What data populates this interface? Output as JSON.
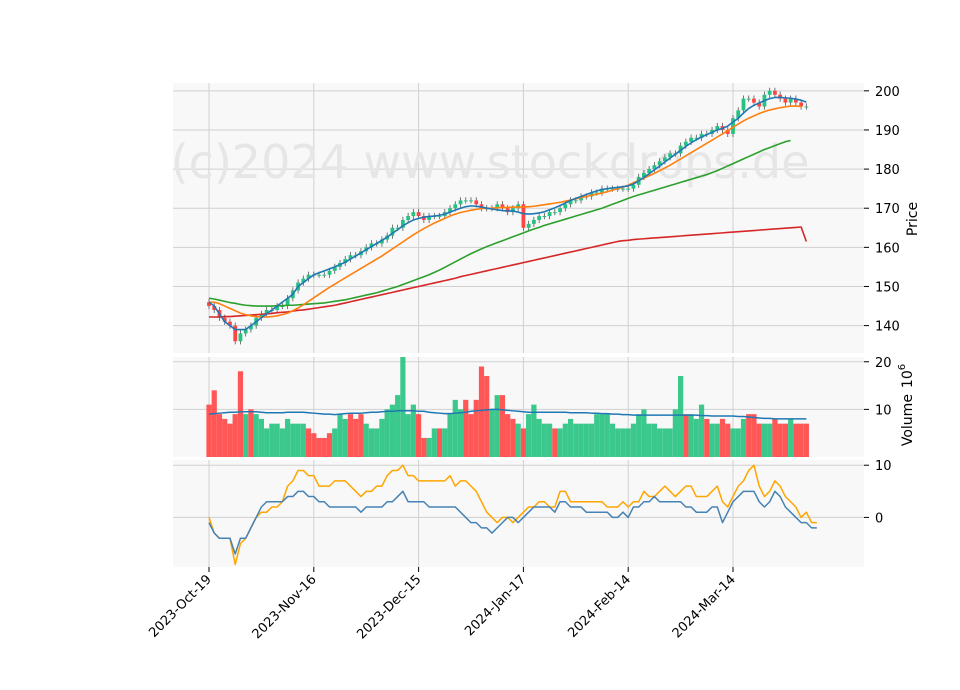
{
  "watermark": "(c)2024 www.stockdrops.de",
  "chart_data": {
    "type": "candlestick",
    "x_tick_labels": [
      "2023-Oct-19",
      "2023-Nov-16",
      "2023-Dec-15",
      "2024-Jan-17",
      "2024-Feb-14",
      "2024-Mar-14"
    ],
    "x_tick_index": [
      0,
      20,
      40,
      60,
      80,
      100
    ],
    "colors": {
      "up": "#26c281",
      "down": "#ff4444",
      "ma_fast": "#1f77b4",
      "ma_mid": "#ff7f0e",
      "ma_slow": "#2ca02c",
      "ma_long": "#d62728",
      "vol_ma": "#1f77b4",
      "osc_a": "#ffa500",
      "osc_b": "#4682b4",
      "grid": "#d0d0d0",
      "panel_bg": "#f8f8f8"
    },
    "price_panel": {
      "ylabel": "Price",
      "ylim": [
        133,
        202
      ],
      "yticks": [
        140,
        150,
        160,
        170,
        180,
        190,
        200
      ],
      "close": [
        145,
        144,
        142,
        141,
        140,
        136,
        138,
        139,
        140,
        142,
        143,
        144,
        144,
        145,
        145,
        147,
        149,
        151,
        152,
        153,
        153,
        153,
        153,
        154,
        155,
        156,
        157,
        158,
        158,
        159,
        160,
        161,
        161,
        162,
        163,
        165,
        165,
        167,
        168,
        169,
        168,
        167,
        168,
        168,
        168,
        169,
        170,
        171,
        172,
        172,
        172,
        171,
        170,
        170,
        170,
        171,
        170,
        169,
        170,
        171,
        165,
        166,
        167,
        168,
        168,
        169,
        169,
        170,
        171,
        172,
        172,
        173,
        173,
        174,
        174,
        175,
        175,
        175,
        175,
        175,
        175,
        176,
        178,
        179,
        180,
        181,
        182,
        183,
        184,
        184,
        186,
        187,
        188,
        188,
        189,
        189,
        190,
        191,
        190,
        189,
        193,
        195,
        198,
        198,
        197,
        196,
        199,
        200,
        199,
        198,
        197,
        198,
        197,
        196,
        196
      ],
      "ma_fast": [
        146,
        145,
        143,
        141,
        140,
        139,
        139,
        139,
        140,
        141,
        142,
        143,
        144,
        145,
        146,
        147,
        148,
        150,
        151,
        152,
        153,
        153.5,
        154,
        154.5,
        155,
        155.6,
        156.2,
        157,
        157.8,
        158.6,
        159.4,
        160.2,
        161,
        161.8,
        162.6,
        163.6,
        164.5,
        165.5,
        166.3,
        167,
        167.4,
        167.7,
        167.9,
        168,
        168.2,
        168.5,
        169,
        169.5,
        170,
        170.4,
        170.6,
        170.5,
        170.3,
        170,
        169.8,
        169.6,
        169.4,
        169.3,
        169.3,
        169,
        168.6,
        168.5,
        168.6,
        168.8,
        169.1,
        169.6,
        170.1,
        170.7,
        171.3,
        172,
        172.5,
        173,
        173.5,
        174,
        174.4,
        174.8,
        175,
        175.2,
        175.3,
        175.5,
        175.7,
        176.2,
        177,
        177.9,
        178.8,
        179.8,
        180.8,
        181.8,
        182.8,
        183.8,
        184.8,
        185.8,
        186.7,
        187.5,
        188.2,
        188.8,
        189.4,
        190,
        190.4,
        191,
        192,
        193,
        194.3,
        195.5,
        196.3,
        196.9,
        197.5,
        198,
        198.3,
        198.3,
        198.2,
        198.1,
        197.9,
        197.6,
        197.1
      ],
      "ma_mid": [
        146,
        146,
        145.6,
        145,
        144.4,
        143.8,
        143.2,
        142.8,
        142.5,
        142.3,
        142.2,
        142.2,
        142.3,
        142.5,
        142.8,
        143.2,
        143.8,
        144.5,
        145.3,
        146.2,
        147.1,
        148,
        148.9,
        149.8,
        150.6,
        151.4,
        152.2,
        153,
        153.8,
        154.6,
        155.4,
        156.2,
        157,
        157.8,
        158.7,
        159.6,
        160.5,
        161.4,
        162.3,
        163.2,
        164,
        164.8,
        165.5,
        166.2,
        166.8,
        167.4,
        168,
        168.5,
        168.9,
        169.2,
        169.5,
        169.7,
        169.9,
        170,
        170,
        170.1,
        170.2,
        170.2,
        170.3,
        170.3,
        170.3,
        170.4,
        170.5,
        170.7,
        170.9,
        171.1,
        171.3,
        171.5,
        171.8,
        172.1,
        172.4,
        172.7,
        173,
        173.3,
        173.6,
        173.9,
        174.2,
        174.6,
        175,
        175.4,
        175.9,
        176.5,
        177.1,
        177.7,
        178.3,
        178.9,
        179.6,
        180.3,
        181,
        181.8,
        182.6,
        183.4,
        184.2,
        185,
        185.8,
        186.6,
        187.4,
        188.2,
        189,
        189.8,
        190.7,
        191.5,
        192.3,
        193,
        193.6,
        194.2,
        194.7,
        195.1,
        195.4,
        195.7,
        195.9,
        196.1,
        196.1,
        196
      ],
      "ma_slow": [
        147,
        146.8,
        146.5,
        146.2,
        145.9,
        145.7,
        145.4,
        145.2,
        145.1,
        145,
        145,
        145,
        145,
        145.1,
        145.1,
        145.2,
        145.2,
        145.3,
        145.4,
        145.5,
        145.6,
        145.7,
        145.8,
        146,
        146.2,
        146.4,
        146.6,
        146.9,
        147.2,
        147.5,
        147.8,
        148.1,
        148.4,
        148.8,
        149.2,
        149.6,
        150,
        150.5,
        151,
        151.5,
        152,
        152.5,
        153,
        153.6,
        154.2,
        154.9,
        155.6,
        156.3,
        157,
        157.7,
        158.4,
        159,
        159.6,
        160.2,
        160.7,
        161.2,
        161.7,
        162.2,
        162.7,
        163.2,
        163.7,
        164.2,
        164.7,
        165.1,
        165.6,
        166,
        166.4,
        166.8,
        167.2,
        167.6,
        168,
        168.4,
        168.8,
        169.2,
        169.6,
        170,
        170.5,
        171,
        171.5,
        172,
        172.5,
        173,
        173.4,
        173.8,
        174.2,
        174.6,
        175,
        175.4,
        175.8,
        176.2,
        176.6,
        177,
        177.4,
        177.8,
        178.2,
        178.6,
        179.1,
        179.6,
        180.2,
        180.8,
        181.4,
        182,
        182.6,
        183.2,
        183.8,
        184.4,
        185,
        185.5,
        186,
        186.5,
        187,
        187.3
      ],
      "ma_long": [
        142.2,
        142.2,
        142.2,
        142.3,
        142.3,
        142.4,
        142.5,
        142.6,
        142.7,
        142.8,
        142.9,
        143,
        143.1,
        143.3,
        143.4,
        143.5,
        143.7,
        143.9,
        144,
        144.2,
        144.4,
        144.6,
        144.8,
        145,
        145.2,
        145.5,
        145.8,
        146.1,
        146.4,
        146.7,
        147,
        147.3,
        147.6,
        147.9,
        148.2,
        148.5,
        148.8,
        149.1,
        149.4,
        149.7,
        150,
        150.3,
        150.6,
        150.9,
        151.2,
        151.5,
        151.8,
        152.1,
        152.5,
        152.8,
        153.1,
        153.4,
        153.7,
        154,
        154.3,
        154.6,
        154.9,
        155.2,
        155.5,
        155.8,
        156.1,
        156.4,
        156.7,
        157,
        157.3,
        157.6,
        157.9,
        158.2,
        158.5,
        158.8,
        159.1,
        159.4,
        159.7,
        160,
        160.3,
        160.6,
        160.9,
        161.2,
        161.5,
        161.7,
        161.8,
        162,
        162.1,
        162.2,
        162.3,
        162.4,
        162.5,
        162.6,
        162.7,
        162.8,
        162.9,
        163,
        163.1,
        163.2,
        163.3,
        163.4,
        163.5,
        163.6,
        163.7,
        163.8,
        163.9,
        164,
        164.1,
        164.2,
        164.3,
        164.4,
        164.5,
        164.6,
        164.7,
        164.8,
        164.9,
        165,
        165.1,
        165.2,
        161.5
      ]
    },
    "volume_panel": {
      "ylabel": "Volume",
      "ylabel_unit": "10",
      "ylabel_exp": "6",
      "ylim": [
        0,
        21
      ],
      "yticks": [
        10,
        20
      ],
      "volume": [
        11,
        14,
        9,
        8,
        7,
        9,
        18,
        9,
        10,
        9,
        8,
        6,
        7,
        7,
        6,
        8,
        7,
        7,
        7,
        6,
        5,
        4,
        4,
        5,
        6,
        9,
        8,
        9,
        8,
        9,
        7,
        6,
        6,
        8,
        10,
        11,
        13,
        21,
        9,
        11,
        9,
        4,
        4,
        6,
        6,
        6,
        9,
        12,
        10,
        12,
        9,
        12,
        19,
        17,
        10,
        13,
        13,
        9,
        8,
        7,
        6,
        9,
        11,
        8,
        7,
        7,
        6,
        6,
        7,
        8,
        7,
        7,
        7,
        7,
        9,
        9,
        9,
        7,
        6,
        6,
        6,
        7,
        9,
        10,
        7,
        7,
        6,
        6,
        6,
        10,
        17,
        9,
        9,
        8,
        11,
        8,
        7,
        7,
        8,
        7,
        6,
        6,
        8,
        9,
        9,
        7,
        7,
        7,
        8,
        7,
        7,
        8,
        7,
        7,
        7
      ],
      "vol_ma": [
        9,
        9.1,
        9.2,
        9.3,
        9.4,
        9.4,
        9.5,
        9.5,
        9.5,
        9.5,
        9.4,
        9.3,
        9.3,
        9.3,
        9.3,
        9.4,
        9.4,
        9.4,
        9.4,
        9.3,
        9.2,
        9.1,
        9,
        9,
        8.9,
        9,
        9.1,
        9.2,
        9.2,
        9.2,
        9.3,
        9.4,
        9.4,
        9.5,
        9.6,
        9.6,
        9.7,
        9.7,
        9.7,
        9.7,
        9.6,
        9.6,
        9.4,
        9.3,
        9.2,
        9.1,
        9.1,
        9.2,
        9.3,
        9.4,
        9.6,
        9.7,
        9.8,
        9.9,
        10,
        10,
        9.9,
        9.8,
        9.7,
        9.6,
        9.5,
        9.4,
        9.4,
        9.4,
        9.4,
        9.4,
        9.4,
        9.4,
        9.4,
        9.3,
        9.3,
        9.3,
        9.3,
        9.2,
        9.2,
        9.1,
        9.1,
        9,
        9,
        8.9,
        8.9,
        8.8,
        8.8,
        8.8,
        8.8,
        8.8,
        8.8,
        8.8,
        8.8,
        8.8,
        8.8,
        8.8,
        8.8,
        8.8,
        8.7,
        8.7,
        8.6,
        8.6,
        8.6,
        8.6,
        8.6,
        8.5,
        8.5,
        8.4,
        8.3,
        8.2,
        8.1,
        8.1,
        8,
        8,
        8,
        8,
        8,
        8,
        8
      ],
      "up": [
        false,
        false,
        false,
        false,
        false,
        false,
        false,
        true,
        false,
        true,
        true,
        true,
        true,
        true,
        true,
        true,
        true,
        true,
        true,
        false,
        false,
        false,
        false,
        false,
        true,
        true,
        true,
        false,
        false,
        false,
        true,
        true,
        true,
        true,
        true,
        true,
        true,
        true,
        true,
        true,
        false,
        false,
        true,
        true,
        false,
        true,
        true,
        true,
        true,
        false,
        false,
        false,
        false,
        false,
        true,
        true,
        false,
        false,
        false,
        true,
        false,
        true,
        true,
        true,
        true,
        true,
        false,
        true,
        true,
        true,
        true,
        true,
        true,
        true,
        true,
        true,
        true,
        true,
        true,
        true,
        true,
        true,
        true,
        true,
        true,
        true,
        true,
        true,
        true,
        true,
        true,
        false,
        true,
        true,
        true,
        false,
        true,
        true,
        false,
        false,
        true,
        true,
        true,
        false,
        false,
        false,
        true,
        true,
        false,
        false,
        false,
        true,
        false,
        false,
        false
      ]
    },
    "osc_panel": {
      "ylim": [
        -9.5,
        11
      ],
      "yticks": [
        0,
        10
      ],
      "line_a": [
        0,
        -3,
        -4,
        -4,
        -4,
        -9,
        -5,
        -4,
        -2,
        0,
        1,
        1,
        2,
        2,
        3,
        6,
        7,
        9,
        9,
        8,
        8,
        6,
        6,
        6,
        7,
        7,
        7,
        6,
        5,
        4,
        5,
        5,
        6,
        6,
        8,
        9,
        9,
        10,
        8,
        8,
        7,
        7,
        7,
        7,
        7,
        7,
        8,
        6,
        7,
        7,
        6,
        5,
        3,
        1,
        0,
        -1,
        0,
        0,
        -1,
        0,
        1,
        2,
        2,
        3,
        3,
        2,
        2,
        5,
        5,
        3,
        3,
        3,
        3,
        3,
        3,
        3,
        2,
        2,
        2,
        3,
        2,
        3,
        3,
        5,
        4,
        4,
        5,
        6,
        5,
        4,
        5,
        6,
        6,
        4,
        4,
        4,
        5,
        6,
        3,
        2,
        4,
        6,
        7,
        9,
        10,
        6,
        4,
        5,
        7,
        6,
        4,
        3,
        2,
        0,
        1,
        -1,
        -1
      ],
      "line_b": [
        -1,
        -3,
        -4,
        -4,
        -4,
        -7,
        -4,
        -4,
        -2,
        0,
        2,
        3,
        3,
        3,
        3,
        4,
        4,
        5,
        5,
        4,
        4,
        3,
        3,
        2,
        2,
        2,
        2,
        2,
        2,
        1,
        2,
        2,
        2,
        2,
        3,
        3,
        4,
        5,
        3,
        3,
        3,
        3,
        2,
        2,
        2,
        2,
        2,
        2,
        1,
        0,
        -1,
        -1,
        -2,
        -2,
        -3,
        -2,
        -1,
        0,
        0,
        -1,
        0,
        1,
        2,
        2,
        2,
        2,
        1,
        3,
        3,
        2,
        2,
        2,
        1,
        1,
        1,
        1,
        1,
        0,
        0,
        1,
        0,
        2,
        2,
        3,
        3,
        4,
        3,
        3,
        3,
        3,
        3,
        2,
        2,
        1,
        1,
        1,
        2,
        2,
        -1,
        1,
        3,
        4,
        5,
        5,
        5,
        3,
        2,
        3,
        5,
        4,
        2,
        1,
        0,
        -1,
        -1,
        -2,
        -2
      ]
    }
  }
}
